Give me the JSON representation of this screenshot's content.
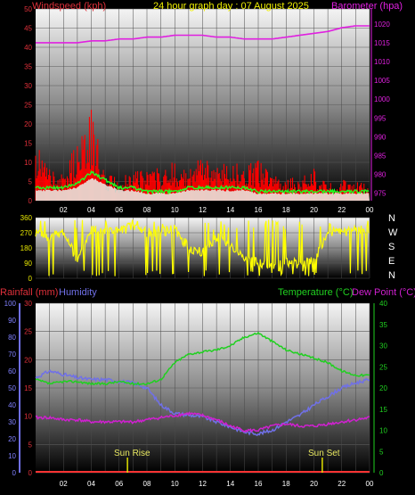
{
  "header": {
    "title": "24 hour graph day : 07 August 2025",
    "wind_label": "Windspeed (kph)",
    "baro_label": "Barometer (hpa)"
  },
  "colors": {
    "wind_label": "#e0303a",
    "baro": "#e020e0",
    "title": "#f0f000",
    "gust": "#ff0000",
    "avg_wind": "#20ff20",
    "wind_fill": "#e8f0e8",
    "direction": "#ffff00",
    "rain": "#ff3333",
    "humidity": "#7070e8",
    "temperature": "#20d020",
    "dewpoint": "#d020d0",
    "sun_marker": "#e0e000"
  },
  "time_ticks": [
    "02",
    "04",
    "06",
    "08",
    "10",
    "12",
    "14",
    "16",
    "18",
    "20",
    "22",
    "00"
  ],
  "direction_labels": [
    "N",
    "W",
    "S",
    "E",
    "N"
  ],
  "lower_labels": {
    "rain": "Rainfall (mm)",
    "humidity": "Humidity",
    "temperature": "Temperature (°C)",
    "dewpoint": "Dew Point (°C)"
  },
  "sun": {
    "rise": "Sun Rise",
    "set": "Sun Set",
    "rise_hour": 6.6,
    "set_hour": 20.6
  },
  "chart_data": [
    {
      "type": "line",
      "title": "",
      "xlabel": "",
      "x_hours": [
        0,
        1,
        2,
        3,
        4,
        5,
        6,
        7,
        8,
        9,
        10,
        11,
        12,
        13,
        14,
        15,
        16,
        17,
        18,
        19,
        20,
        21,
        22,
        23,
        24
      ],
      "left_axis": {
        "ticks": [
          0,
          5,
          10,
          15,
          20,
          25,
          30,
          35,
          40,
          45,
          50
        ],
        "ylim": [
          0,
          50
        ]
      },
      "right_axis": {
        "ticks": [
          975,
          980,
          985,
          990,
          995,
          1000,
          1005,
          1010,
          1015,
          1020
        ],
        "ylim": [
          973,
          1024
        ]
      },
      "series": [
        {
          "name": "Windspeed (kph)",
          "axis": "left",
          "values": [
            14,
            8,
            6,
            15,
            22,
            7,
            5,
            8,
            7,
            8,
            10,
            7,
            12,
            8,
            10,
            8,
            10,
            6,
            6,
            5,
            8,
            4,
            5,
            5,
            4
          ]
        },
        {
          "name": "Barometer (hpa)",
          "axis": "right",
          "values": [
            1015,
            1015,
            1015,
            1015,
            1015.5,
            1015.5,
            1016,
            1016,
            1016.5,
            1016.5,
            1017,
            1017,
            1017,
            1016.5,
            1016.5,
            1016,
            1016,
            1016,
            1016.5,
            1017,
            1017.5,
            1018,
            1019,
            1019.5,
            1019.5
          ]
        }
      ],
      "avg_wind": [
        3,
        3,
        3,
        4,
        7,
        5,
        3,
        3,
        2,
        2,
        2,
        3,
        3,
        3,
        3,
        3,
        2,
        2,
        2,
        2,
        2,
        2,
        2,
        2,
        2
      ]
    },
    {
      "type": "scatter",
      "title": "",
      "y_ticks": [
        0,
        90,
        180,
        270,
        360
      ],
      "ylim": [
        0,
        360
      ],
      "direction_deg": [
        270,
        240,
        280,
        100,
        300,
        290,
        280,
        310,
        270,
        280,
        290,
        180,
        150,
        250,
        200,
        120,
        90,
        60,
        100,
        80,
        100,
        280,
        270,
        280,
        290
      ]
    },
    {
      "type": "line",
      "title": "",
      "x_hours": [
        0,
        1,
        2,
        3,
        4,
        5,
        6,
        7,
        8,
        9,
        10,
        11,
        12,
        13,
        14,
        15,
        16,
        17,
        18,
        19,
        20,
        21,
        22,
        23,
        24
      ],
      "rain_axis": {
        "ticks": [
          0,
          5,
          10,
          15,
          20,
          25,
          30
        ],
        "ylim": [
          0,
          30
        ]
      },
      "humidity_axis": {
        "ticks": [
          0,
          10,
          20,
          30,
          40,
          50,
          60,
          70,
          80,
          90,
          100
        ],
        "ylim": [
          0,
          100
        ]
      },
      "temp_axis": {
        "ticks": [
          0,
          5,
          10,
          15,
          20,
          25,
          30,
          35,
          40
        ],
        "ylim": [
          0,
          40
        ]
      },
      "series": [
        {
          "name": "Rainfall (mm)",
          "axis": "rain",
          "values": [
            0,
            0,
            0,
            0,
            0,
            0,
            0,
            0,
            0,
            0,
            0,
            0,
            0,
            0,
            0,
            0,
            0,
            0,
            0,
            0,
            0,
            0,
            0,
            0,
            0
          ]
        },
        {
          "name": "Humidity",
          "axis": "humidity",
          "values": [
            56,
            60,
            58,
            56,
            55,
            55,
            54,
            53,
            50,
            40,
            35,
            34,
            33,
            30,
            27,
            24,
            23,
            25,
            30,
            34,
            40,
            45,
            50,
            53,
            55
          ]
        },
        {
          "name": "Temperature (°C)",
          "axis": "temp",
          "values": [
            22,
            21,
            21.5,
            21.5,
            21,
            21,
            21.5,
            21,
            21,
            22,
            26,
            28,
            28.5,
            29,
            30,
            32,
            33,
            31,
            29,
            28,
            27,
            26,
            24,
            23,
            23
          ]
        },
        {
          "name": "Dew Point (°C)",
          "axis": "temp",
          "values": [
            13,
            13,
            12.5,
            12.5,
            12,
            12,
            12,
            12,
            12.5,
            13,
            13.5,
            14,
            13.5,
            12.5,
            11,
            10,
            10,
            11,
            11.5,
            11,
            11,
            11.5,
            12,
            12.5,
            13
          ]
        }
      ]
    }
  ]
}
